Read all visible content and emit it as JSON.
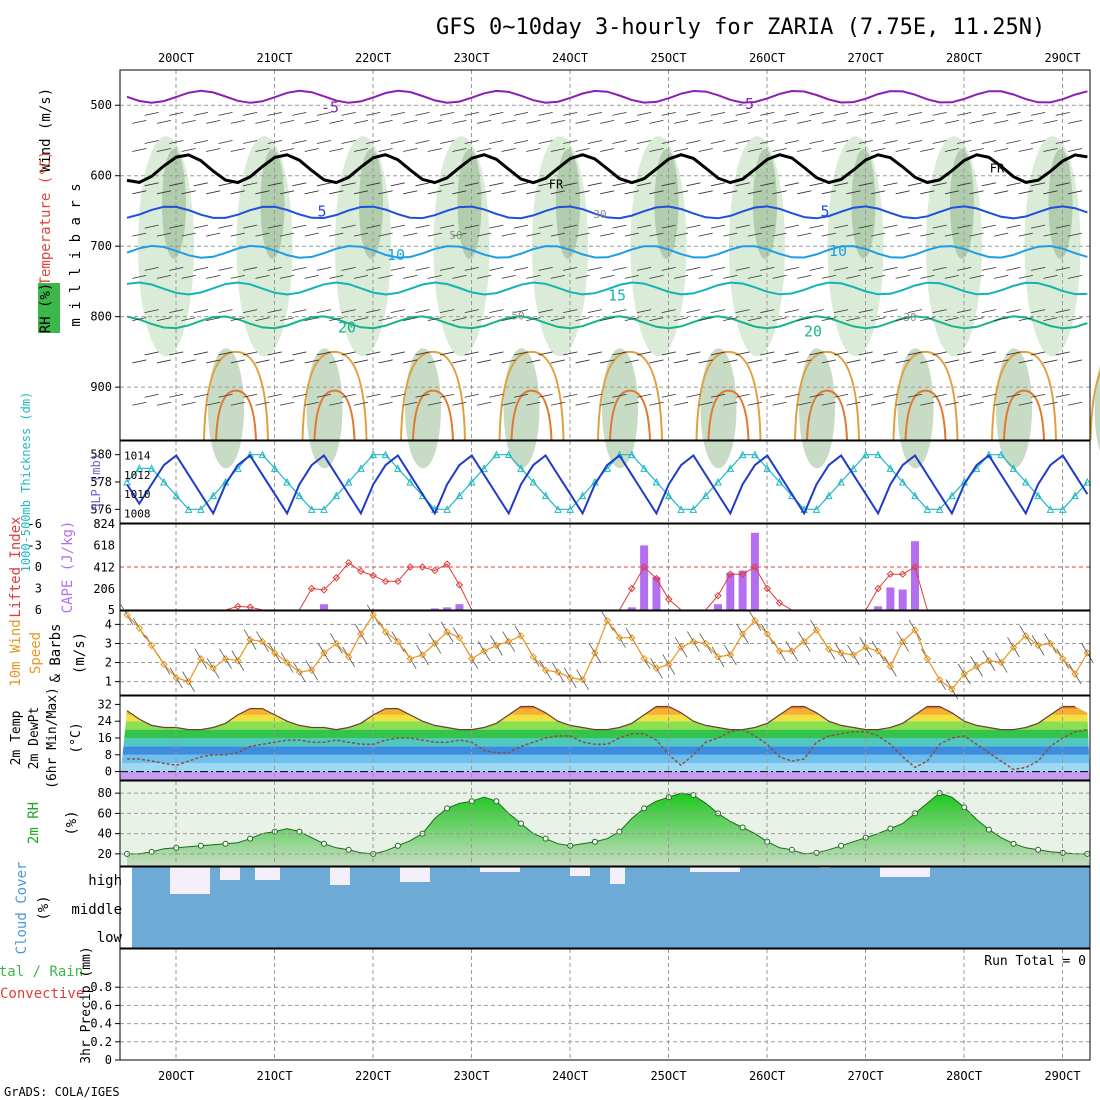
{
  "header": {
    "title": "GFS 0~10day 3-hourly for ZARIA (7.75E, 11.25N)",
    "credit": "GrADS: COLA/IGES"
  },
  "colors": {
    "temp_label": "#e0463c",
    "wind_label": "#000000",
    "rh_green": "#3cb84a",
    "thickness": "#20b8c4",
    "slp": "#1e3cc8",
    "lifted_index": "#e03c3c",
    "cape": "#b46ef0",
    "wind10m": "#e8961e",
    "cloud": "#6eaad6",
    "cloud_clear": "#f4eef8",
    "convective": "#e03c3c",
    "precip_total": "#3cb84a"
  },
  "chart_data": {
    "type": "meteogram",
    "time_labels": [
      "20OCT",
      "21OCT",
      "22OCT",
      "23OCT",
      "24OCT",
      "25OCT",
      "26OCT",
      "27OCT",
      "28OCT",
      "29OCT"
    ],
    "panels": [
      {
        "id": "upper",
        "type": "contour",
        "ylabel_parts": [
          "Wind (m/s)",
          "Temperature (°C)",
          "RH (%)"
        ],
        "side_label": "m i l l i b a r s",
        "ytick_labels": [
          "500",
          "600",
          "700",
          "800",
          "900"
        ],
        "ylim": [
          450,
          975
        ],
        "temperature_labels": [
          "-5",
          "5",
          "10",
          "15",
          "20"
        ],
        "rh_labels": [
          "30",
          "50"
        ],
        "freezing_label": "FR",
        "temperature_levels": [
          {
            "temp": -5,
            "mb": 488,
            "color": "#8c1eb4"
          },
          {
            "temp": 0,
            "mb": 590,
            "color": "#000000"
          },
          {
            "temp": 5,
            "mb": 652,
            "color": "#1e50dc"
          },
          {
            "temp": 10,
            "mb": 708,
            "color": "#1e9ee6"
          },
          {
            "temp": 15,
            "mb": 760,
            "color": "#14b4b4"
          },
          {
            "temp": 20,
            "mb": 808,
            "color": "#14b48c"
          }
        ]
      },
      {
        "id": "thickness_slp",
        "type": "line",
        "ylabel_left": "1000-500mb Thickness (dm)",
        "ylabel_right": "SLP (mb)",
        "left_ticks": [
          "576",
          "578",
          "580"
        ],
        "right_ticks": [
          "1008",
          "1010",
          "1012",
          "1014"
        ],
        "left_lim": [
          575,
          581
        ],
        "right_lim": [
          1007,
          1015.5
        ],
        "series": [
          {
            "name": "SLP (mb)",
            "values": [
              1011,
              1009,
              1011,
              1013,
              1014,
              1012,
              1010,
              1008,
              1011,
              1013,
              1014,
              1012,
              1010,
              1008,
              1011,
              1013,
              1014,
              1012,
              1010,
              1008,
              1011,
              1013,
              1014,
              1012,
              1010,
              1008,
              1011,
              1013,
              1014,
              1012,
              1010,
              1008,
              1011,
              1013,
              1014,
              1012,
              1010,
              1008,
              1011,
              1013,
              1014,
              1012,
              1010,
              1008,
              1011,
              1013,
              1014,
              1012,
              1010,
              1008,
              1011,
              1013,
              1014,
              1012,
              1010,
              1008,
              1011,
              1013,
              1014,
              1012,
              1010,
              1008,
              1011,
              1013,
              1014,
              1012,
              1010,
              1008,
              1011,
              1013,
              1014,
              1012,
              1010,
              1008,
              1011,
              1013,
              1014,
              1012,
              1010,
              1008,
              1011
            ]
          },
          {
            "name": "Thickness (dm)",
            "values": [
              578,
              579,
              579,
              578,
              577,
              576,
              576,
              577,
              578,
              579,
              580,
              580,
              579,
              578,
              577,
              576,
              576,
              577,
              578,
              579,
              580,
              580,
              579,
              578,
              577,
              576,
              576,
              577,
              578,
              579,
              580,
              580,
              579,
              578,
              577,
              576,
              576,
              577,
              578,
              579,
              580,
              580,
              579,
              578,
              577,
              576,
              576,
              577,
              578,
              579,
              580,
              580,
              579,
              578,
              577,
              576,
              576,
              577,
              578,
              579,
              580,
              580,
              579,
              578,
              577,
              576,
              576,
              577,
              578,
              579,
              580,
              580,
              579,
              578,
              577,
              576,
              576,
              577,
              578,
              579,
              579
            ]
          }
        ]
      },
      {
        "id": "cape_li",
        "type": "bar+line",
        "ylabel_left": "Lifted Index",
        "ylabel_right": "CAPE (J/kg)",
        "left_ticks": [
          "-6",
          "-3",
          "0",
          "3",
          "6"
        ],
        "right_ticks": [
          "5",
          "206",
          "412",
          "618",
          "824"
        ],
        "left_lim": [
          -6,
          6
        ],
        "right_lim": [
          5,
          824
        ],
        "cape": [
          0,
          0,
          0,
          0,
          0,
          0,
          0,
          0,
          0,
          0,
          0,
          0,
          0,
          0,
          0,
          0,
          60,
          0,
          0,
          0,
          0,
          0,
          10,
          0,
          0,
          20,
          30,
          60,
          0,
          0,
          0,
          0,
          0,
          0,
          0,
          0,
          0,
          0,
          0,
          0,
          0,
          30,
          620,
          320,
          0,
          0,
          0,
          0,
          60,
          360,
          380,
          740,
          0,
          0,
          0,
          0,
          0,
          0,
          0,
          0,
          0,
          40,
          220,
          200,
          660,
          0,
          0,
          0,
          0,
          0,
          0,
          0,
          0,
          0,
          0,
          0,
          0,
          0,
          0,
          0,
          0
        ],
        "lifted_index": [
          6,
          6,
          6,
          6,
          6,
          6,
          6,
          6,
          6,
          5.5,
          5.6,
          6,
          6,
          6,
          6,
          3,
          3.2,
          1.5,
          -0.6,
          0.6,
          1.2,
          2,
          2,
          0,
          0,
          0.5,
          -0.4,
          2.5,
          6,
          6,
          6,
          6,
          6,
          6,
          6,
          6,
          6,
          6,
          6,
          6,
          6,
          3,
          0,
          1.6,
          4.5,
          6,
          6,
          6,
          4,
          1,
          1,
          0,
          3,
          5,
          6,
          6,
          6,
          6,
          6,
          6,
          6,
          3,
          1,
          1,
          0,
          6,
          6,
          6,
          6,
          6,
          6,
          6,
          6,
          6,
          6,
          6,
          6,
          6,
          6,
          6,
          6
        ]
      },
      {
        "id": "wind10m",
        "type": "line",
        "ylabel": "10m Wind Speed & Barbs (m/s)",
        "ticks": [
          "1",
          "2",
          "3",
          "4"
        ],
        "ylim": [
          0.3,
          4.7
        ],
        "values": [
          4.5,
          3.8,
          2.9,
          1.9,
          1.2,
          1,
          2.2,
          1.7,
          2.2,
          2.1,
          3.2,
          3.1,
          2.5,
          2,
          1.5,
          1.6,
          2.5,
          3,
          2.3,
          3.5,
          4.5,
          3.6,
          3.1,
          2.2,
          2.4,
          3,
          3.6,
          3.3,
          2.2,
          2.6,
          2.9,
          3.1,
          3.4,
          2.3,
          1.6,
          1.5,
          1.2,
          1.1,
          2.5,
          4.2,
          3.3,
          3.3,
          2.2,
          1.7,
          1.9,
          2.8,
          3.1,
          3,
          2.3,
          2.4,
          3.5,
          4.2,
          3.5,
          2.6,
          2.6,
          3.1,
          3.7,
          2.7,
          2.5,
          2.4,
          2.8,
          2.6,
          1.8,
          3.1,
          3.7,
          2.2,
          1.1,
          0.6,
          1.4,
          1.8,
          2.1,
          2,
          2.8,
          3.4,
          2.9,
          3,
          2.2,
          1.4,
          2.5,
          3.2,
          2.6
        ]
      },
      {
        "id": "temp2m",
        "type": "area+line",
        "ylabel": "2m Temp 2m DewPt (6hr Min/Max) (°C)",
        "ticks": [
          "0",
          "8",
          "16",
          "24",
          "32"
        ],
        "ylim": [
          -4,
          36
        ],
        "temperature": [
          29,
          25,
          22,
          21,
          21,
          20,
          20,
          21,
          23,
          27,
          30,
          30,
          27,
          24,
          22,
          21,
          21,
          20,
          21,
          23,
          27,
          30,
          30,
          27,
          24,
          22,
          21,
          20,
          20,
          21,
          23,
          27,
          31,
          31,
          28,
          24,
          22,
          21,
          20,
          20,
          21,
          23,
          27,
          31,
          31,
          28,
          24,
          22,
          21,
          20,
          20,
          21,
          23,
          27,
          31,
          31,
          28,
          24,
          22,
          21,
          20,
          20,
          21,
          23,
          27,
          31,
          31,
          28,
          24,
          22,
          21,
          20,
          20,
          21,
          23,
          27,
          31,
          31,
          28,
          24,
          22
        ],
        "dewpoint": [
          6,
          6,
          5,
          4,
          3,
          5,
          7,
          8,
          8,
          9,
          12,
          13,
          14,
          15,
          15,
          14,
          14,
          15,
          14,
          13,
          13,
          15,
          16,
          16,
          15,
          14,
          14,
          15,
          14,
          10,
          9,
          9,
          12,
          14,
          16,
          17,
          17,
          14,
          13,
          13,
          16,
          18,
          18,
          15,
          8,
          3,
          8,
          14,
          16,
          19,
          20,
          17,
          13,
          7,
          5,
          6,
          14,
          17,
          18,
          19,
          19,
          17,
          13,
          7,
          2,
          5,
          13,
          16,
          17,
          13,
          9,
          5,
          1,
          2,
          5,
          12,
          16,
          19,
          20,
          18,
          16
        ]
      },
      {
        "id": "rh2m",
        "type": "area+line",
        "ylabel": "2m RH (%)",
        "ticks": [
          "20",
          "40",
          "60",
          "80"
        ],
        "ylim": [
          8,
          92
        ],
        "values": [
          20,
          20,
          22,
          25,
          26,
          27,
          28,
          29,
          30,
          31,
          35,
          40,
          42,
          45,
          42,
          36,
          30,
          26,
          24,
          21,
          20,
          23,
          28,
          33,
          40,
          55,
          65,
          70,
          72,
          76,
          72,
          60,
          50,
          40,
          35,
          30,
          28,
          30,
          32,
          35,
          42,
          55,
          65,
          72,
          76,
          80,
          78,
          70,
          60,
          52,
          46,
          40,
          32,
          26,
          24,
          20,
          21,
          24,
          28,
          32,
          36,
          40,
          45,
          50,
          60,
          70,
          80,
          76,
          66,
          54,
          44,
          36,
          30,
          26,
          24,
          22,
          21,
          20,
          20,
          22,
          28
        ]
      },
      {
        "id": "cloud",
        "type": "heatmap",
        "ylabel": "Cloud Cover (%)",
        "labels": [
          "high",
          "middle",
          "low"
        ]
      },
      {
        "id": "precip",
        "type": "bar",
        "ylabel_left": "Total / Rain Convective",
        "ylabel_right": "3hr Precip (mm)",
        "ticks": [
          "0",
          "0.2",
          "0.4",
          "0.6",
          "0.8"
        ],
        "ylim": [
          0,
          1
        ],
        "run_total": "Run Total = 0",
        "values": []
      }
    ]
  }
}
